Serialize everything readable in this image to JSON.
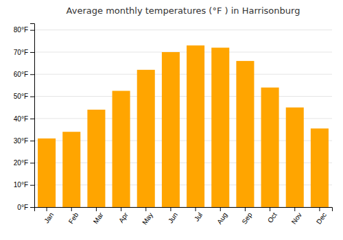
{
  "chart_data": {
    "type": "bar",
    "title": "Average monthly temperatures (°F ) in Harrisonburg",
    "categories": [
      "Jan",
      "Feb",
      "Mar",
      "Apr",
      "May",
      "Jun",
      "Jul",
      "Aug",
      "Sep",
      "Oct",
      "Nov",
      "Dec"
    ],
    "values": [
      31,
      34,
      44,
      52.5,
      62,
      70,
      73,
      72,
      66,
      54,
      45,
      35.5
    ],
    "color": "#FFA500",
    "ylim": [
      0,
      83
    ],
    "yticks": [
      {
        "value": 0,
        "label": "0°F"
      },
      {
        "value": 10,
        "label": "10°F"
      },
      {
        "value": 20,
        "label": "20°F"
      },
      {
        "value": 30,
        "label": "30°F"
      },
      {
        "value": 40,
        "label": "40°F"
      },
      {
        "value": 50,
        "label": "50°F"
      },
      {
        "value": 60,
        "label": "60°F"
      },
      {
        "value": 70,
        "label": "70°F"
      },
      {
        "value": 80,
        "label": "80°F"
      }
    ],
    "grid": true
  }
}
